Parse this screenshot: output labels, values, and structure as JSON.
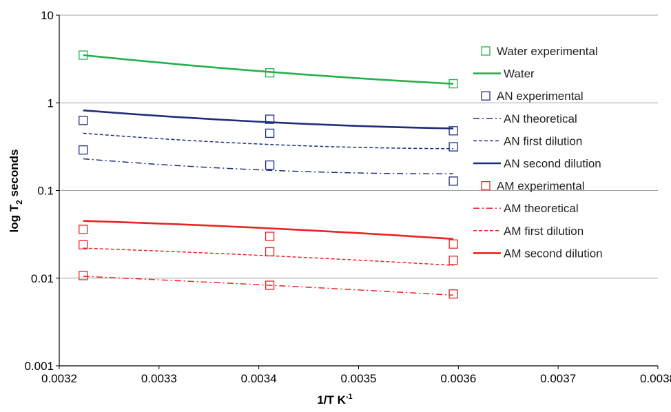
{
  "chart_data": {
    "type": "scatter",
    "title": "",
    "xlabel": "1/T K",
    "xlabel_sup": "-1",
    "ylabel_pre": "log T",
    "ylabel_sub": "2",
    "ylabel_post": " seconds",
    "xlim": [
      0.0032,
      0.0038
    ],
    "ylim": [
      0.001,
      10
    ],
    "y_scale": "log",
    "x_ticks": [
      "0.0032",
      "0.0033",
      "0.0034",
      "0.0035",
      "0.0036",
      "0.0037",
      "0.0038"
    ],
    "x_tick_values": [
      0.0032,
      0.0033,
      0.0034,
      0.0035,
      0.0036,
      0.0037,
      0.0038
    ],
    "y_ticks": [
      "0.001",
      "0.01",
      "0.1",
      "1",
      "10"
    ],
    "y_tick_values": [
      0.001,
      0.01,
      0.1,
      1,
      10
    ],
    "grid": "horizontal",
    "legend_position": "right",
    "series": [
      {
        "name": "Water experimental",
        "kind": "marker",
        "color": "#22b14c",
        "x": [
          0.003224,
          0.003411,
          0.003595
        ],
        "y": [
          3.5,
          2.2,
          1.65
        ]
      },
      {
        "name": "Water",
        "kind": "line",
        "dash": "solid",
        "color": "#22b14c",
        "x": [
          0.003224,
          0.003411,
          0.003595
        ],
        "y": [
          3.5,
          2.25,
          1.65
        ]
      },
      {
        "name": "AN experimental",
        "kind": "marker",
        "color": "#1f2e7a",
        "x": [
          0.003224,
          0.003224,
          0.003411,
          0.003411,
          0.003411,
          0.003595,
          0.003595,
          0.003595
        ],
        "y": [
          0.63,
          0.29,
          0.65,
          0.45,
          0.195,
          0.48,
          0.315,
          0.128
        ]
      },
      {
        "name": "AN theoretical",
        "kind": "line",
        "dash": "dashdot",
        "color": "#1f2e7a",
        "x": [
          0.003224,
          0.003411,
          0.003595
        ],
        "y": [
          0.23,
          0.17,
          0.155
        ]
      },
      {
        "name": "AN first dilution",
        "kind": "line",
        "dash": "dash",
        "color": "#1f2e7a",
        "x": [
          0.003224,
          0.003411,
          0.003595
        ],
        "y": [
          0.45,
          0.335,
          0.3
        ]
      },
      {
        "name": "AN second dilution",
        "kind": "line",
        "dash": "solid",
        "color": "#1f2e7a",
        "x": [
          0.003224,
          0.003411,
          0.003595
        ],
        "y": [
          0.82,
          0.6,
          0.51
        ]
      },
      {
        "name": "AM experimental",
        "kind": "marker",
        "color": "#ee2222",
        "x": [
          0.003224,
          0.003224,
          0.003224,
          0.003411,
          0.003411,
          0.003411,
          0.003595,
          0.003595,
          0.003595
        ],
        "y": [
          0.036,
          0.024,
          0.0107,
          0.03,
          0.02,
          0.0083,
          0.0245,
          0.016,
          0.0066
        ]
      },
      {
        "name": "AM theoretical",
        "kind": "line",
        "dash": "dashdot",
        "color": "#ee2222",
        "x": [
          0.003224,
          0.003411,
          0.003595
        ],
        "y": [
          0.0105,
          0.0083,
          0.0064
        ]
      },
      {
        "name": "AM first dilution",
        "kind": "line",
        "dash": "dash",
        "color": "#ee2222",
        "x": [
          0.003224,
          0.003411,
          0.003595
        ],
        "y": [
          0.022,
          0.018,
          0.014
        ]
      },
      {
        "name": "AM second dilution",
        "kind": "line",
        "dash": "solid",
        "color": "#ee2222",
        "x": [
          0.003224,
          0.003411,
          0.003595
        ],
        "y": [
          0.045,
          0.037,
          0.028
        ]
      }
    ]
  }
}
